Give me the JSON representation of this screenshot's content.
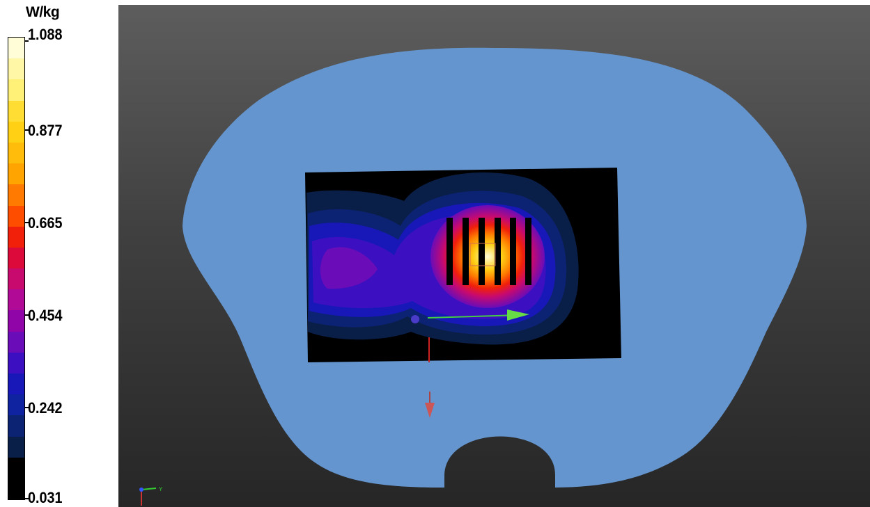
{
  "legend": {
    "unit": "W/kg",
    "ticks": [
      "1.088",
      "0.877",
      "0.665",
      "0.454",
      "0.242",
      "0.031"
    ],
    "bands": [
      "#fffdd8",
      "#fff6a6",
      "#fff078",
      "#ffdd32",
      "#ffd014",
      "#ffbc0a",
      "#ffa400",
      "#ff7a00",
      "#ff4d00",
      "#f0200a",
      "#dc0a3a",
      "#c80a6e",
      "#b00a96",
      "#9005a8",
      "#6a0cb8",
      "#3c10c0",
      "#1818b8",
      "#0f22a0",
      "#0c2272",
      "#0a1f48",
      "#000000",
      "#000000"
    ]
  },
  "scene": {
    "background_top": "#5d5d5d",
    "background_bottom": "#262626",
    "phantom_color": "#6495ce",
    "scan_background": "#000000"
  },
  "axes": {
    "y_label": "Y"
  }
}
